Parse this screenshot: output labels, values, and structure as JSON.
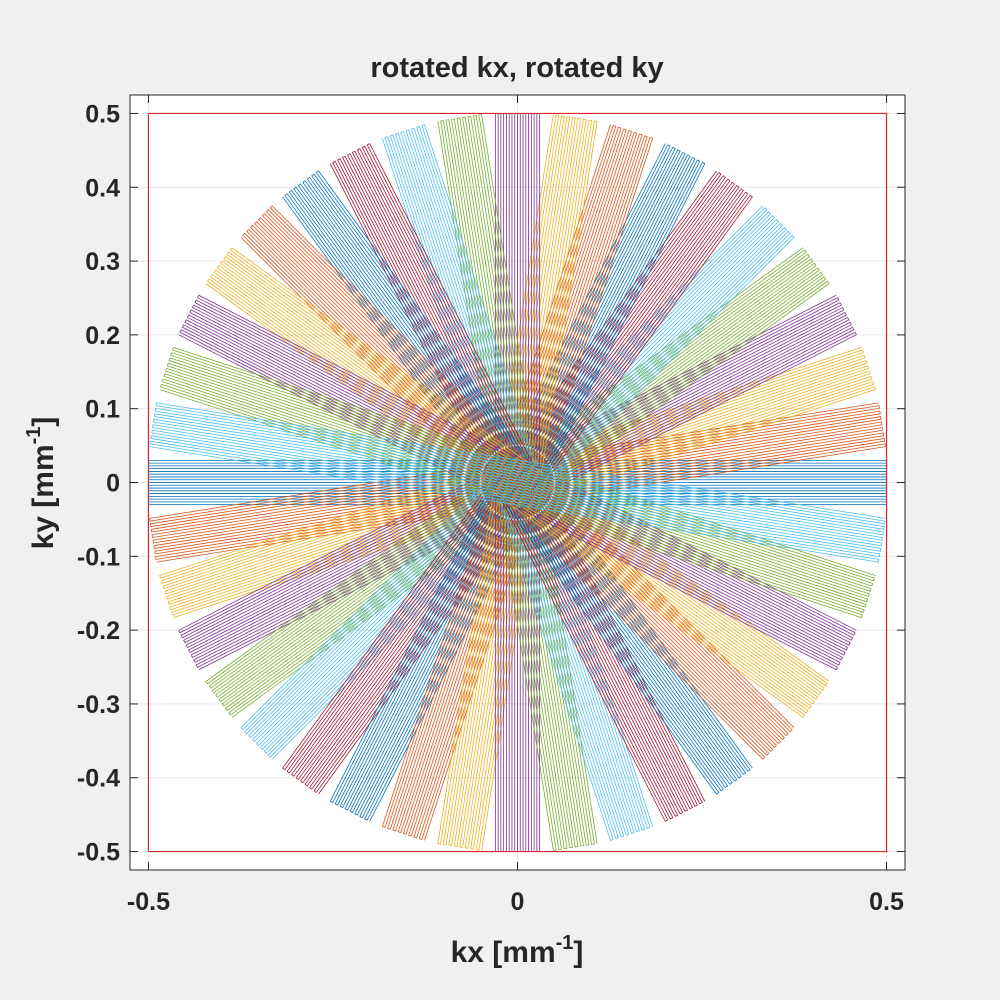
{
  "chart_data": {
    "type": "line",
    "title": "rotated kx, rotated ky",
    "xlabel_base": "kx [mm",
    "xlabel_sup": "-1",
    "xlabel_close": "]",
    "ylabel_base": "ky [mm",
    "ylabel_sup": "-1",
    "ylabel_close": "]",
    "xlim": [
      -0.525,
      0.525
    ],
    "ylim": [
      -0.525,
      0.525
    ],
    "xticks": [
      -0.5,
      0,
      0.5
    ],
    "xtick_labels": [
      "-0.5",
      "0",
      "0.5"
    ],
    "yticks": [
      -0.5,
      -0.4,
      -0.3,
      -0.2,
      -0.1,
      0,
      0.1,
      0.2,
      0.3,
      0.4,
      0.5
    ],
    "ytick_labels": [
      "-0.5",
      "-0.4",
      "-0.3",
      "-0.2",
      "-0.1",
      "0",
      "0.1",
      "0.2",
      "0.3",
      "0.4",
      "0.5"
    ],
    "grid": true,
    "blades": {
      "count": 20,
      "angle_step_deg": 9,
      "radius": 0.5,
      "half_width": 0.03,
      "lines_per_blade": 17
    },
    "boundary": {
      "x": [
        -0.5,
        0.5,
        0.5,
        -0.5,
        -0.5
      ],
      "y": [
        -0.5,
        -0.5,
        0.5,
        0.5,
        -0.5
      ],
      "color": "#d62728"
    },
    "series_colors": [
      "#0072bd",
      "#d95319",
      "#edb120",
      "#7e2f8e",
      "#77ac30",
      "#4dbeee",
      "#a2142f"
    ]
  }
}
